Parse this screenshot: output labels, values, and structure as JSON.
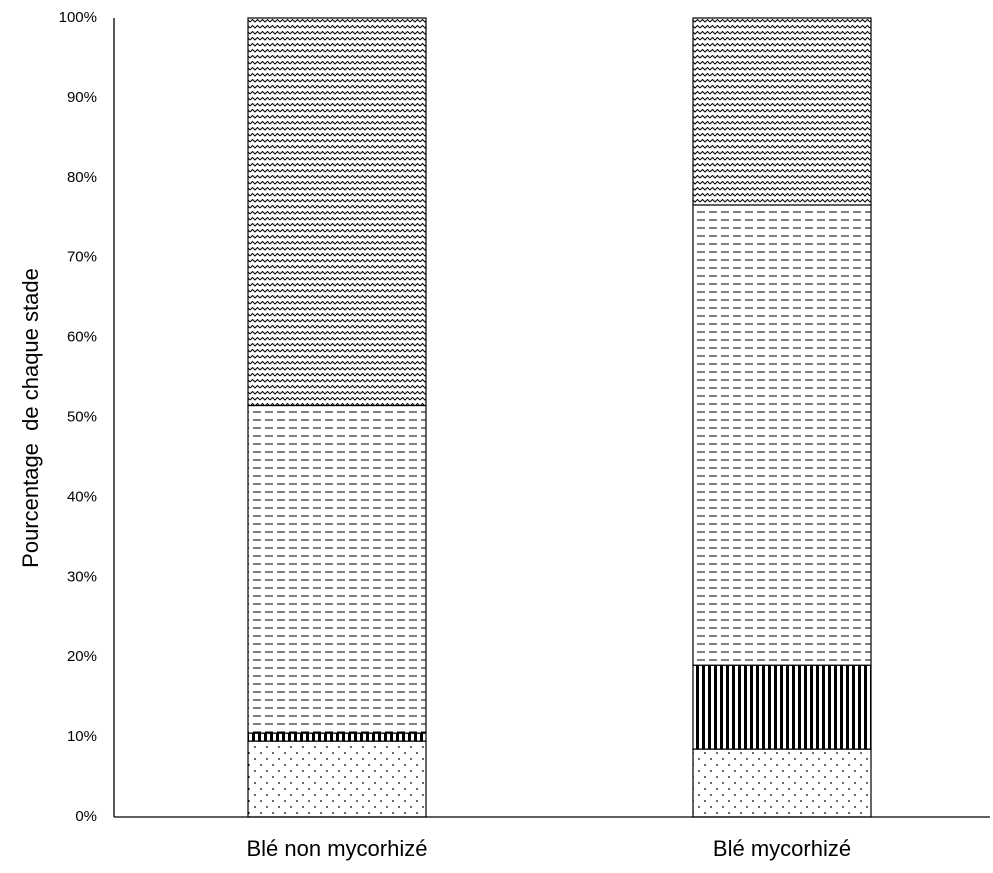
{
  "chart_data": {
    "type": "bar",
    "stacked": true,
    "percent": true,
    "title": "",
    "xlabel": "",
    "ylabel": "Pourcentage  de chaque stade",
    "ylim": [
      0,
      100
    ],
    "yticks": [
      "0%",
      "10%",
      "20%",
      "30%",
      "40%",
      "50%",
      "60%",
      "70%",
      "80%",
      "90%",
      "100%"
    ],
    "categories": [
      "Blé non mycorhizé",
      "Blé mycorhizé"
    ],
    "grid": false,
    "legend": "none",
    "series": [
      {
        "pattern": "dots",
        "values": [
          9.5,
          8.5
        ]
      },
      {
        "pattern": "vertical-lines",
        "values": [
          1.0,
          10.5
        ]
      },
      {
        "pattern": "dashes",
        "values": [
          41.0,
          57.6
        ]
      },
      {
        "pattern": "waves",
        "values": [
          48.5,
          23.4
        ]
      }
    ],
    "colors": {
      "stroke": "#000000",
      "fill": "#ffffff"
    }
  }
}
